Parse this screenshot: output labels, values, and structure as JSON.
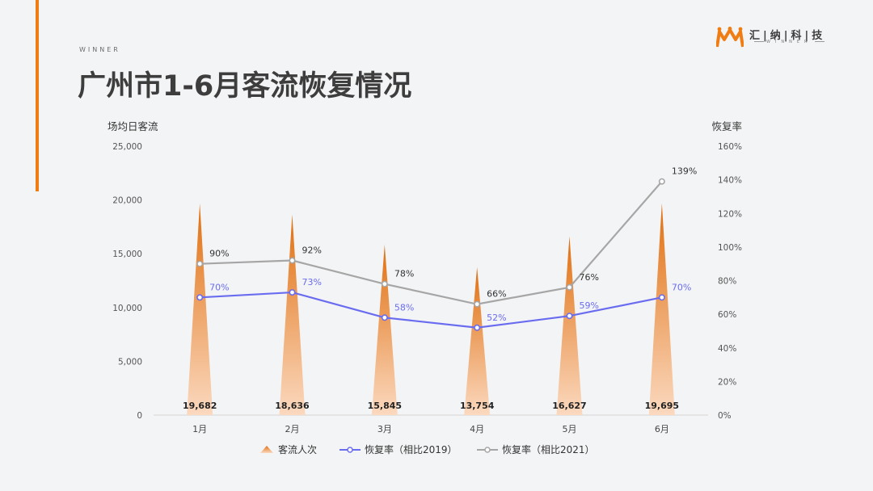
{
  "header": {
    "kicker": "WINNER",
    "title": "广州市1-6月客流恢复情况"
  },
  "logo": {
    "name": "汇|纳|科|技",
    "sub": "WINNER",
    "color": "#f07d13"
  },
  "colors": {
    "accent": "#f07d13",
    "bar_top": "#e06f10",
    "bar_bottom": "#fbd9bf",
    "series_2019": "#6a6cf0",
    "series_2021": "#a6a6a6"
  },
  "chart_data": {
    "type": "bar",
    "categories": [
      "1月",
      "2月",
      "3月",
      "4月",
      "5月",
      "6月"
    ],
    "ylabel": "场均日客流",
    "y2label": "恢复率",
    "ylim": [
      0,
      25000
    ],
    "yticks": [
      "0",
      "5,000",
      "10,000",
      "15,000",
      "20,000",
      "25,000"
    ],
    "y2lim": [
      0,
      160
    ],
    "y2ticks": [
      "0%",
      "20%",
      "40%",
      "60%",
      "80%",
      "100%",
      "120%",
      "140%",
      "160%"
    ],
    "series": [
      {
        "name": "客流人次",
        "type": "bar",
        "axis": "left",
        "values": [
          19682,
          18636,
          15845,
          13754,
          16627,
          19695
        ],
        "labels": [
          "19,682",
          "18,636",
          "15,845",
          "13,754",
          "16,627",
          "19,695"
        ]
      },
      {
        "name": "恢复率（相比2019）",
        "type": "line",
        "axis": "right",
        "values": [
          70,
          73,
          58,
          52,
          59,
          70
        ],
        "labels": [
          "70%",
          "73%",
          "58%",
          "52%",
          "59%",
          "70%"
        ]
      },
      {
        "name": "恢复率（相比2021）",
        "type": "line",
        "axis": "right",
        "values": [
          90,
          92,
          78,
          66,
          76,
          139
        ],
        "labels": [
          "90%",
          "92%",
          "78%",
          "66%",
          "76%",
          "139%"
        ]
      }
    ],
    "grid": false,
    "legend": "bottom"
  }
}
